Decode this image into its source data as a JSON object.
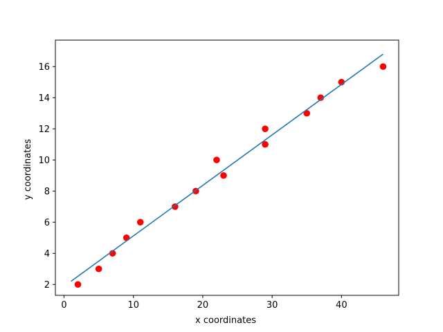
{
  "chart_data": {
    "type": "scatter",
    "title": "",
    "xlabel": "x coordinates",
    "ylabel": "y coordinates",
    "xlim": [
      -1.25,
      48.25
    ],
    "ylim": [
      1.3,
      17.7
    ],
    "xticks": [
      0,
      10,
      20,
      30,
      40
    ],
    "yticks": [
      2,
      4,
      6,
      8,
      10,
      12,
      14,
      16
    ],
    "grid": false,
    "legend": "none",
    "series": [
      {
        "type": "scatter",
        "color": "#ff0000",
        "x": [
          2,
          5,
          7,
          9,
          11,
          16,
          19,
          22,
          23,
          29,
          29,
          35,
          37,
          40,
          46
        ],
        "y": [
          2,
          3,
          4,
          5,
          6,
          7,
          8,
          10,
          9,
          12,
          11,
          13,
          14,
          15,
          16
        ]
      },
      {
        "type": "line",
        "color": "#1f77b4",
        "x": [
          1,
          46
        ],
        "y": [
          2.2,
          16.8
        ]
      }
    ]
  }
}
